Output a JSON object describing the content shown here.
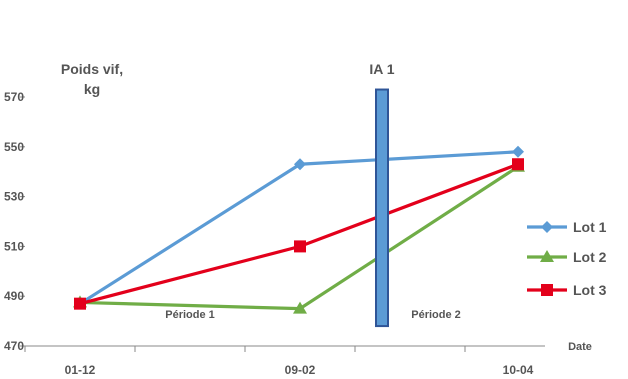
{
  "chart_data": {
    "type": "line",
    "ylabel_line1": "Poids vif,",
    "ylabel_line2": "kg",
    "xlabel": "Date",
    "x": [
      "01-12",
      "09-02",
      "10-04"
    ],
    "ylim": [
      470,
      570
    ],
    "yticks": [
      470,
      490,
      510,
      530,
      550,
      570
    ],
    "series": [
      {
        "name": "Lot 1",
        "values": [
          487,
          543,
          548
        ],
        "color": "#5B9BD5",
        "marker": "diamond"
      },
      {
        "name": "Lot 2",
        "values": [
          487.5,
          485,
          542
        ],
        "color": "#70AD47",
        "marker": "triangle"
      },
      {
        "name": "Lot 3",
        "values": [
          487,
          510,
          543
        ],
        "color": "#E3001B",
        "marker": "square"
      }
    ],
    "event": {
      "label": "IA 1",
      "x_between": [
        "09-02",
        "10-04"
      ],
      "ylim": [
        478,
        573
      ],
      "color": "#5B9BD5"
    },
    "annotations": [
      "Période 1",
      "Période 2"
    ],
    "legend_position": "right"
  }
}
